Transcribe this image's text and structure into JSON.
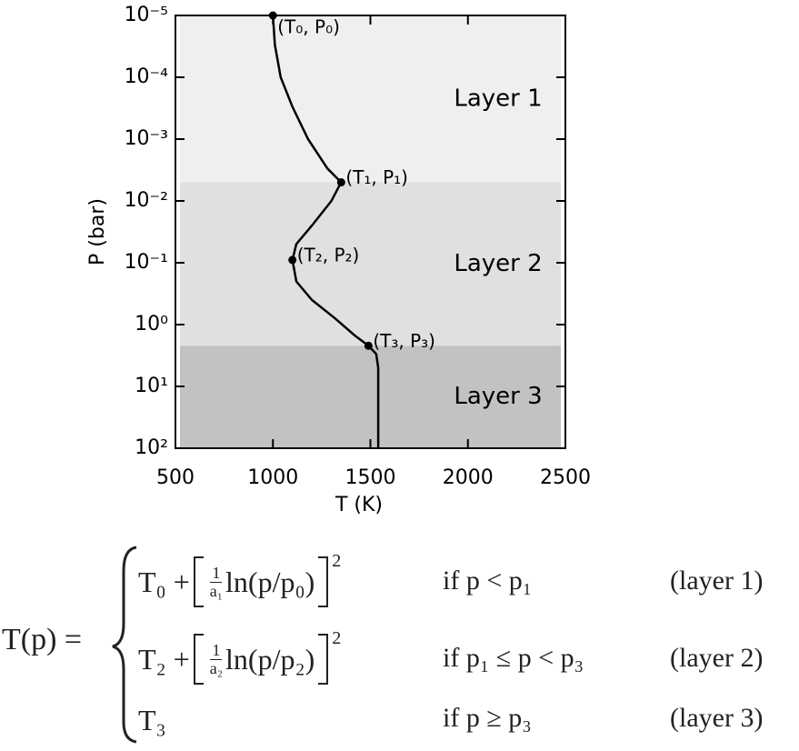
{
  "chart_data": {
    "type": "line",
    "xlabel": "T (K)",
    "ylabel": "P (bar)",
    "xlim": [
      500,
      2500
    ],
    "xticks": [
      500,
      1000,
      1500,
      2000,
      2500
    ],
    "ylim": [
      1e-05,
      100
    ],
    "ylog": true,
    "yinverted": true,
    "yticks": [
      {
        "value": 1e-05,
        "label": "10⁻⁵"
      },
      {
        "value": 0.0001,
        "label": "10⁻⁴"
      },
      {
        "value": 0.001,
        "label": "10⁻³"
      },
      {
        "value": 0.01,
        "label": "10⁻²"
      },
      {
        "value": 0.1,
        "label": "10⁻¹"
      },
      {
        "value": 1,
        "label": "10⁰"
      },
      {
        "value": 10,
        "label": "10¹"
      },
      {
        "value": 100,
        "label": "10²"
      }
    ],
    "color": "#000000",
    "x": [
      1000,
      1010,
      1040,
      1100,
      1180,
      1280,
      1350,
      1300,
      1200,
      1120,
      1100,
      1120,
      1200,
      1320,
      1420,
      1490,
      1530,
      1540,
      1540,
      1540
    ],
    "values": [
      1e-05,
      3e-05,
      0.0001,
      0.0003,
      0.001,
      0.003,
      0.005,
      0.01,
      0.025,
      0.05,
      0.09,
      0.2,
      0.4,
      0.8,
      1.5,
      2.2,
      3,
      5,
      10,
      100
    ],
    "layers": [
      {
        "name": "Layer 1",
        "color": "#efefef",
        "ylim": [
          1e-05,
          0.005
        ]
      },
      {
        "name": "Layer 2",
        "color": "#e0e0e0",
        "ylim": [
          0.005,
          2.2
        ]
      },
      {
        "name": "Layer 3",
        "color": "#c2c2c2",
        "ylim": [
          2.2,
          100
        ]
      }
    ],
    "points": [
      {
        "label": "(T₀, P₀)",
        "x": 1000,
        "y": 1e-05
      },
      {
        "label": "(T₁, P₁)",
        "x": 1350,
        "y": 0.005
      },
      {
        "label": "(T₂, P₂)",
        "x": 1100,
        "y": 0.09
      },
      {
        "label": "(T₃, P₃)",
        "x": 1490,
        "y": 2.2
      }
    ]
  },
  "equation": {
    "lhs": "T(p) =",
    "cases": [
      {
        "term": "T₀ +",
        "num": "1",
        "den": "a₁",
        "log": "ln(p/p₀)",
        "power": "2",
        "condition": "if p < p₁",
        "label": "(layer 1)"
      },
      {
        "term": "T₂ +",
        "num": "1",
        "den": "a₂",
        "log": "ln(p/p₂)",
        "power": "2",
        "condition": "if p₁ ≤ p < p₃",
        "label": "(layer 2)"
      },
      {
        "term": "T₃",
        "condition": "if p ≥ p₃",
        "label": "(layer 3)"
      }
    ]
  }
}
